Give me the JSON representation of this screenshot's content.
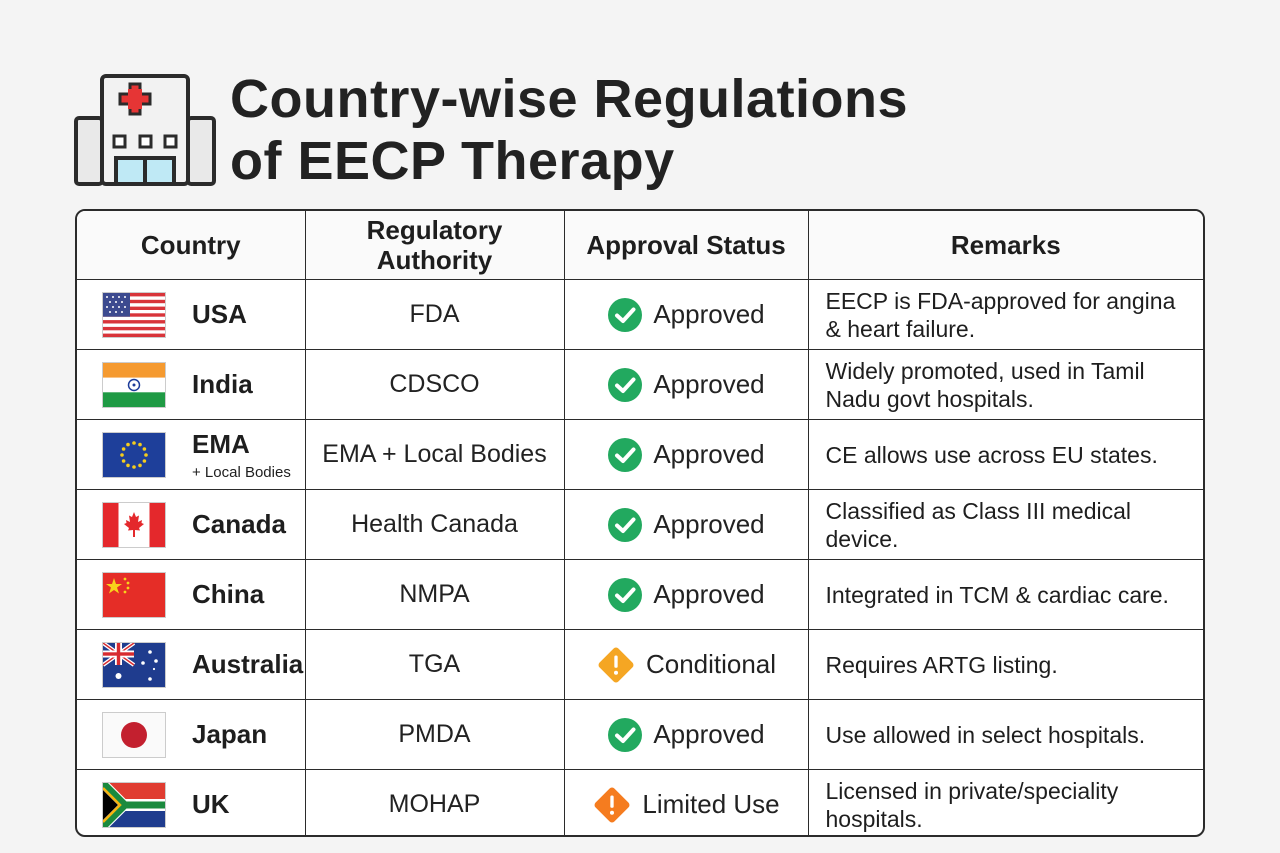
{
  "page": {
    "title_line1": "Country-wise Regulations",
    "title_line2": "of EECP Therapy"
  },
  "colors": {
    "approved": "#22a95f",
    "warning": "#f5a623",
    "warning_alt": "#f57c1f",
    "cross": "#e63535",
    "border": "#2b2b2b"
  },
  "table": {
    "headers": {
      "country": "Country",
      "authority_line1": "Regulatory",
      "authority_line2": "Authority",
      "status": "Approval Status",
      "remarks": "Remarks"
    },
    "rows": [
      {
        "flag": "usa-flag",
        "country": "USA",
        "country_sub": "",
        "authority": "FDA",
        "status": "Approved",
        "status_icon": "check-circle-icon",
        "remarks": "EECP is FDA-approved for angina & heart failure."
      },
      {
        "flag": "india-flag",
        "country": "India",
        "country_sub": "",
        "authority": "CDSCO",
        "status": "Approved",
        "status_icon": "check-circle-icon",
        "remarks": "Widely promoted, used in Tamil Nadu govt hospitals."
      },
      {
        "flag": "eu-flag",
        "country": "EMA",
        "country_sub": "+ Local Bodies",
        "authority": "EMA + Local Bodies",
        "status": "Approved",
        "status_icon": "check-circle-icon",
        "remarks": "CE allows use across EU states."
      },
      {
        "flag": "canada-flag",
        "country": "Canada",
        "country_sub": "",
        "authority": "Health Canada",
        "status": "Approved",
        "status_icon": "check-circle-icon",
        "remarks": "Classified as Class III medical device."
      },
      {
        "flag": "china-flag",
        "country": "China",
        "country_sub": "",
        "authority": "NMPA",
        "status": "Approved",
        "status_icon": "check-circle-icon",
        "remarks": "Integrated in TCM & cardiac care."
      },
      {
        "flag": "australia-flag",
        "country": "Australia",
        "country_sub": "",
        "authority": "TGA",
        "status": "Conditional",
        "status_icon": "warning-diamond-icon",
        "remarks": "Requires ARTG listing."
      },
      {
        "flag": "japan-flag",
        "country": "Japan",
        "country_sub": "",
        "authority": "PMDA",
        "status": "Approved",
        "status_icon": "check-circle-icon",
        "remarks": "Use allowed in select hospitals."
      },
      {
        "flag": "south-africa-flag",
        "country": "UK",
        "country_sub": "",
        "authority": "MOHAP",
        "status": "Limited Use",
        "status_icon": "warning-diamond-icon",
        "remarks": "Licensed in private/speciality hospitals."
      }
    ]
  }
}
